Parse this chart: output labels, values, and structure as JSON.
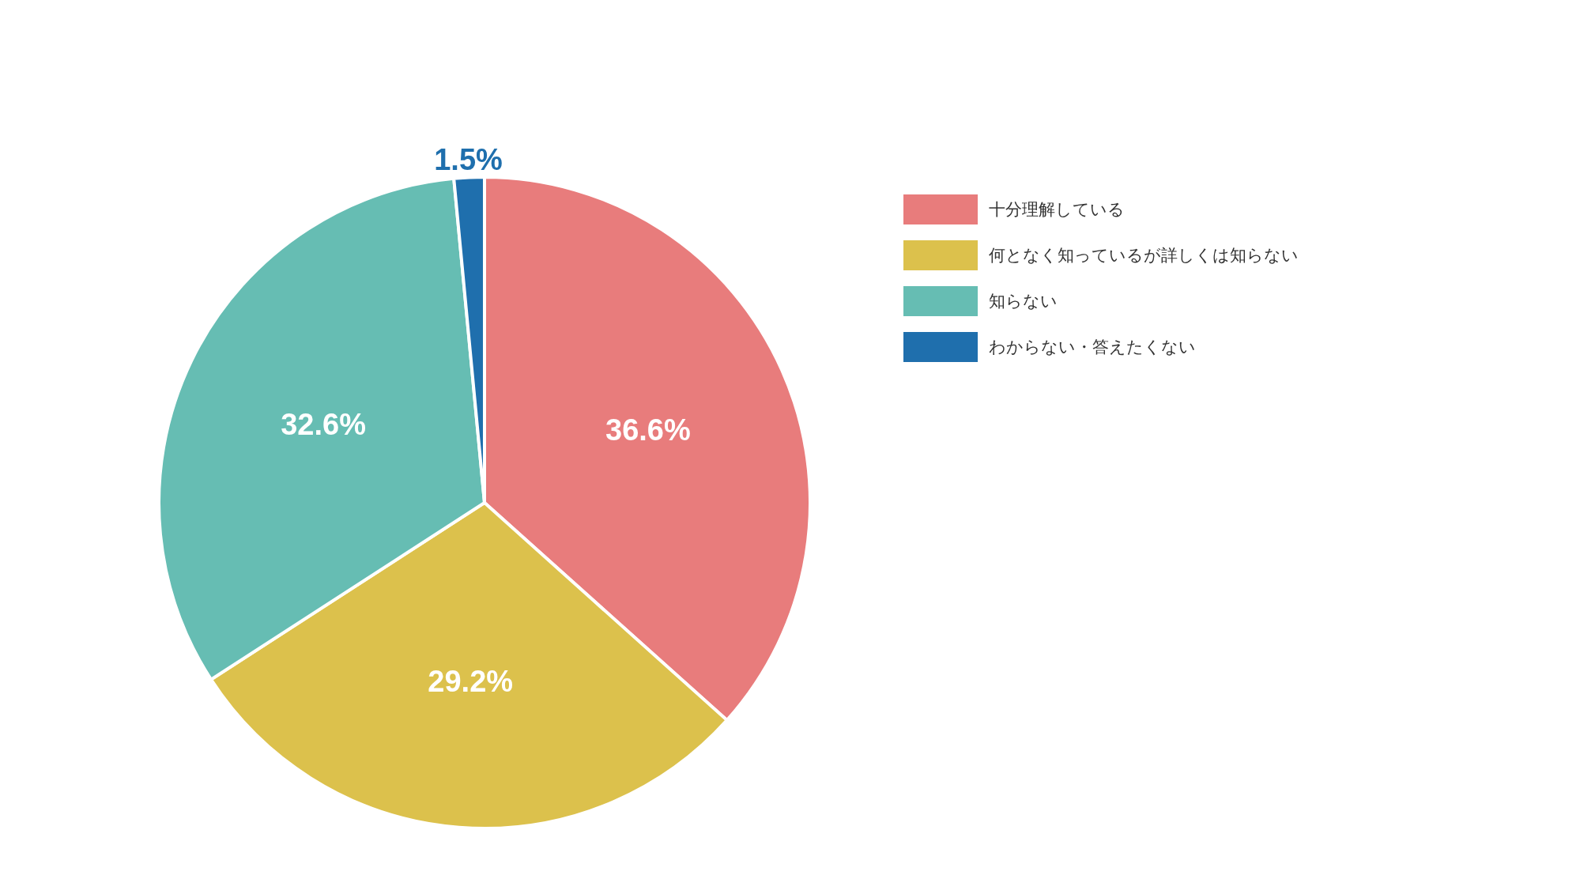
{
  "chart_data": {
    "type": "pie",
    "categories": [
      "十分理解している",
      "何となく知っているが詳しくは知らない",
      "知らない",
      "わからない・答えたくない"
    ],
    "values": [
      36.6,
      29.2,
      32.6,
      1.5
    ],
    "value_labels": [
      "36.6%",
      "29.2%",
      "32.6%",
      "1.5%"
    ],
    "colors": [
      "#e87c7c",
      "#dcc14c",
      "#66bdb3",
      "#1f6fad"
    ],
    "legend": "right"
  }
}
